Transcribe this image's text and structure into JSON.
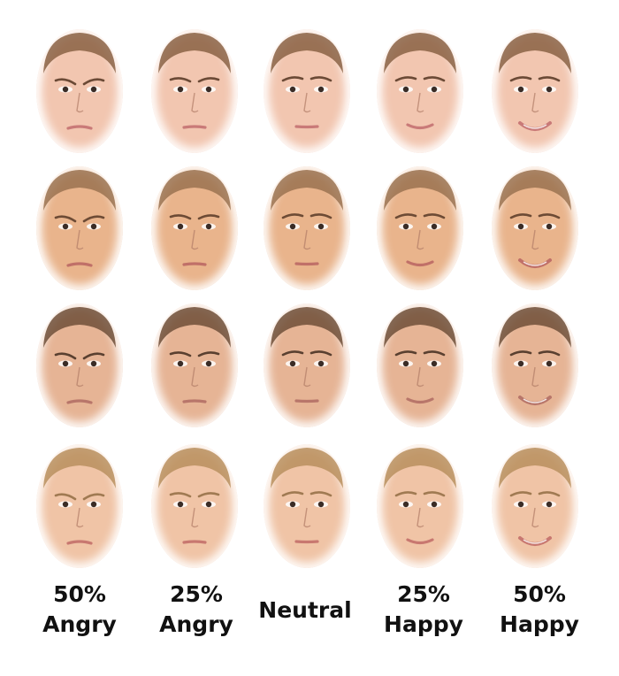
{
  "labels": [
    {
      "line1": "50%",
      "line2": "Angry"
    },
    {
      "line1": "25%",
      "line2": "Angry"
    },
    {
      "line1": "Neutral",
      "line2": ""
    },
    {
      "line1": "25%",
      "line2": "Happy"
    },
    {
      "line1": "50%",
      "line2": "Happy"
    }
  ],
  "rows": [
    {
      "skin": "#f2c6b0",
      "hair": "#8a6244",
      "brow": "#6b4a36",
      "lip": "#c97a78"
    },
    {
      "skin": "#e9b48c",
      "hair": "#9a7250",
      "brow": "#6d4b35",
      "lip": "#c07068"
    },
    {
      "skin": "#e6b495",
      "hair": "#6e4f38",
      "brow": "#5a4030",
      "lip": "#b8766a"
    },
    {
      "skin": "#f0c4a6",
      "hair": "#b88f5e",
      "brow": "#a07a52",
      "lip": "#c87870"
    }
  ],
  "columns": [
    {
      "expression": "angry-50"
    },
    {
      "expression": "angry-25"
    },
    {
      "expression": "neutral"
    },
    {
      "expression": "happy-25"
    },
    {
      "expression": "happy-50"
    }
  ]
}
